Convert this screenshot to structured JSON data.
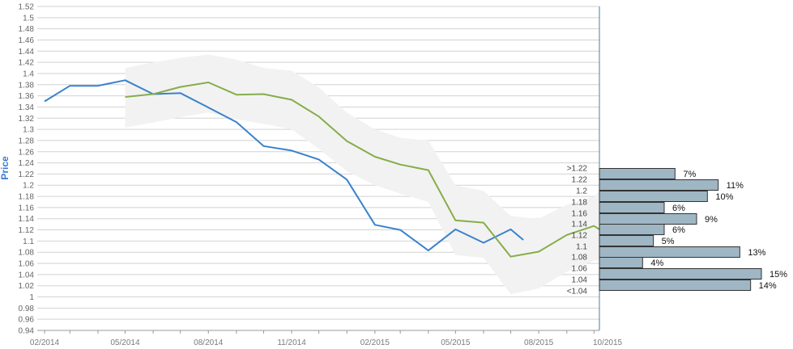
{
  "colors": {
    "actual_line": "#3a82cc",
    "forecast_line": "#86ad4a",
    "band_fill": "#f2f2f2",
    "hist_bar_fill": "#9fb6c4",
    "hist_bar_stroke": "#333333",
    "grid": "#d2d2d2",
    "divider": "#4a7f9c",
    "ylabel": "#3a7bd5"
  },
  "chart_data": {
    "type": "line",
    "title": "",
    "xlabel": "",
    "ylabel": "Price",
    "ylim": [
      0.94,
      1.52
    ],
    "y_ticks": [
      "0.94",
      "0.96",
      "0.98",
      "1",
      "1.02",
      "1.04",
      "1.06",
      "1.08",
      "1.1",
      "1.12",
      "1.14",
      "1.16",
      "1.18",
      "1.2",
      "1.22",
      "1.24",
      "1.26",
      "1.28",
      "1.3",
      "1.32",
      "1.34",
      "1.36",
      "1.38",
      "1.4",
      "1.42",
      "1.44",
      "1.46",
      "1.48",
      "1.5",
      "1.52"
    ],
    "x_ticks": [
      "02/2014",
      "05/2014",
      "08/2014",
      "11/2014",
      "02/2015",
      "05/2015",
      "08/2015",
      "10/2015"
    ],
    "grid": true,
    "series": [
      {
        "kind": "actual",
        "x": [
          "2014-02-01",
          "2014-03-01",
          "2014-04-01",
          "2014-05-01",
          "2014-06-01",
          "2014-07-01",
          "2014-08-01",
          "2014-09-01",
          "2014-10-01",
          "2014-11-01",
          "2014-12-01",
          "2015-01-01",
          "2015-02-01",
          "2015-03-01",
          "2015-04-01",
          "2015-05-01",
          "2015-06-01",
          "2015-07-01",
          "2015-07-15"
        ],
        "y": [
          1.35,
          1.378,
          1.378,
          1.388,
          1.363,
          1.365,
          1.339,
          1.313,
          1.27,
          1.262,
          1.246,
          1.21,
          1.129,
          1.12,
          1.083,
          1.121,
          1.097,
          1.121,
          1.102
        ]
      },
      {
        "kind": "forecast",
        "x": [
          "2014-05-01",
          "2014-06-01",
          "2014-07-01",
          "2014-08-01",
          "2014-09-01",
          "2014-10-01",
          "2014-11-01",
          "2014-12-01",
          "2015-01-01",
          "2015-02-01",
          "2015-03-01",
          "2015-04-01",
          "2015-05-01",
          "2015-06-01",
          "2015-07-01",
          "2015-08-01",
          "2015-09-01",
          "2015-10-01",
          "2015-10-07"
        ],
        "y": [
          1.358,
          1.363,
          1.376,
          1.384,
          1.362,
          1.363,
          1.353,
          1.323,
          1.279,
          1.251,
          1.237,
          1.227,
          1.137,
          1.133,
          1.072,
          1.081,
          1.111,
          1.127,
          1.121
        ]
      },
      {
        "kind": "band",
        "x": [
          "2014-05-01",
          "2014-06-01",
          "2014-07-01",
          "2014-08-01",
          "2014-09-01",
          "2014-10-01",
          "2014-11-01",
          "2014-12-01",
          "2015-01-01",
          "2015-02-01",
          "2015-03-01",
          "2015-04-01",
          "2015-05-01",
          "2015-06-01",
          "2015-07-01",
          "2015-08-01",
          "2015-09-01",
          "2015-10-01",
          "2015-10-07"
        ],
        "upper": [
          1.41,
          1.42,
          1.428,
          1.434,
          1.425,
          1.41,
          1.405,
          1.375,
          1.33,
          1.3,
          1.285,
          1.28,
          1.2,
          1.19,
          1.145,
          1.14,
          1.165,
          1.18,
          1.19
        ],
        "lower": [
          1.303,
          1.312,
          1.322,
          1.33,
          1.318,
          1.31,
          1.3,
          1.265,
          1.225,
          1.2,
          1.185,
          1.17,
          1.075,
          1.07,
          1.005,
          1.015,
          1.045,
          1.065,
          1.065
        ]
      }
    ],
    "histogram": {
      "categories": [
        ">1.22",
        "1.22",
        "1.2",
        "1.18",
        "1.16",
        "1.14",
        "1.12",
        "1.1",
        "1.08",
        "1.06",
        "1.04",
        "<1.04"
      ],
      "values": [
        7,
        11,
        10,
        6,
        9,
        6,
        5,
        13,
        4,
        15,
        14
      ],
      "labels": [
        "7%",
        "11%",
        "10%",
        "6%",
        "9%",
        "6%",
        "5%",
        "13%",
        "4%",
        "15%",
        "14%"
      ]
    }
  }
}
